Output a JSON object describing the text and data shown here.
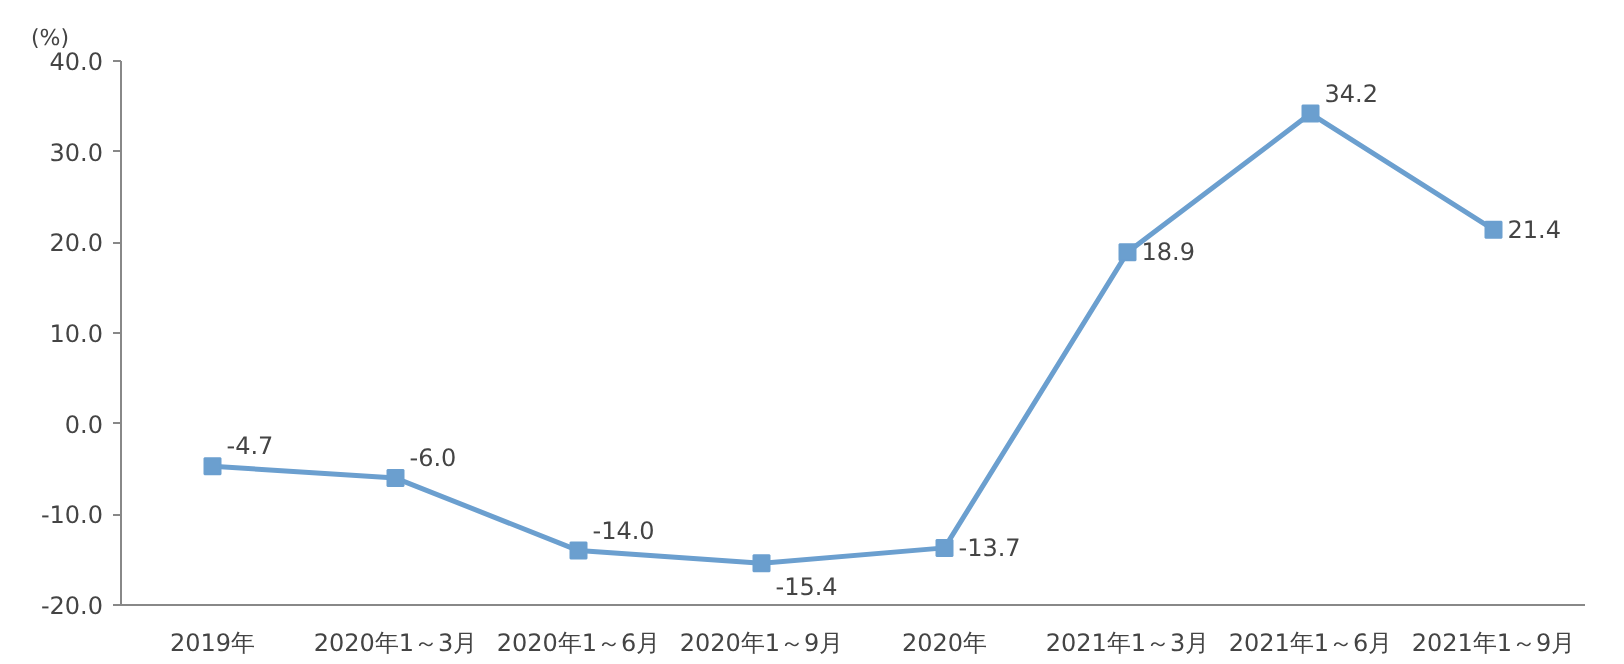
{
  "chart_data": {
    "type": "line",
    "ylabel": "(%)",
    "categories": [
      "2019年",
      "2020年1～3月",
      "2020年1～6月",
      "2020年1～9月",
      "2020年",
      "2021年1～3月",
      "2021年1～6月",
      "2021年1～9月"
    ],
    "series": [
      {
        "color": "#6b9fcf",
        "values": [
          -4.7,
          -6.0,
          -14.0,
          -15.4,
          -13.7,
          18.9,
          34.2,
          21.4
        ],
        "value_labels": [
          "-4.7",
          "-6.0",
          "-14.0",
          "-15.4",
          "-13.7",
          "18.9",
          "34.2",
          "21.4"
        ]
      }
    ],
    "ylim": [
      -20,
      40
    ],
    "yticks": [
      {
        "value": -20,
        "label": "-20.0"
      },
      {
        "value": -10,
        "label": "-10.0"
      },
      {
        "value": 0,
        "label": "0.0"
      },
      {
        "value": 10,
        "label": "10.0"
      },
      {
        "value": 20,
        "label": "20.0"
      },
      {
        "value": 30,
        "label": "30.0"
      },
      {
        "value": 40,
        "label": "40.0"
      }
    ],
    "grid": false,
    "marker": "square",
    "line_style": "solid"
  }
}
